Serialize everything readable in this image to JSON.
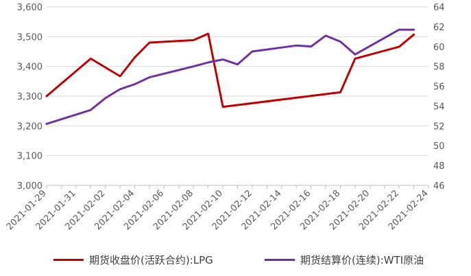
{
  "chart_data": {
    "type": "line",
    "x_dates": [
      "2021-01-29",
      "2021-01-30",
      "2021-01-31",
      "2021-02-01",
      "2021-02-02",
      "2021-02-03",
      "2021-02-04",
      "2021-02-05",
      "2021-02-06",
      "2021-02-07",
      "2021-02-08",
      "2021-02-09",
      "2021-02-10",
      "2021-02-11",
      "2021-02-12",
      "2021-02-13",
      "2021-02-14",
      "2021-02-15",
      "2021-02-16",
      "2021-02-17",
      "2021-02-18",
      "2021-02-19",
      "2021-02-20",
      "2021-02-21",
      "2021-02-22",
      "2021-02-23",
      "2021-02-24"
    ],
    "x_tick_labels": [
      "2021-01-29",
      "2021-01-31",
      "2021-02-02",
      "2021-02-04",
      "2021-02-06",
      "2021-02-08",
      "2021-02-10",
      "2021-02-12",
      "2021-02-14",
      "2021-02-16",
      "2021-02-18",
      "2021-02-20",
      "2021-02-22",
      "2021-02-24"
    ],
    "y_left": {
      "min": 3000,
      "max": 3600,
      "ticks": [
        "3,000",
        "3,100",
        "3,200",
        "3,300",
        "3,400",
        "3,500",
        "3,600"
      ]
    },
    "y_right": {
      "min": 46,
      "max": 64,
      "ticks": [
        "46",
        "48",
        "50",
        "52",
        "54",
        "56",
        "58",
        "60",
        "62",
        "64"
      ]
    },
    "series": [
      {
        "name": "期货收盘价(活跃合约):LPG",
        "axis": "left",
        "color": "#C00000",
        "points": [
          {
            "x": "2021-01-29",
            "y": 3300
          },
          {
            "x": "2021-02-01",
            "y": 3426
          },
          {
            "x": "2021-02-03",
            "y": 3367
          },
          {
            "x": "2021-02-04",
            "y": 3430
          },
          {
            "x": "2021-02-05",
            "y": 3480
          },
          {
            "x": "2021-02-08",
            "y": 3488
          },
          {
            "x": "2021-02-09",
            "y": 3510
          },
          {
            "x": "2021-02-10",
            "y": 3264
          },
          {
            "x": "2021-02-18",
            "y": 3313
          },
          {
            "x": "2021-02-19",
            "y": 3426
          },
          {
            "x": "2021-02-22",
            "y": 3466
          },
          {
            "x": "2021-02-23",
            "y": 3507
          }
        ]
      },
      {
        "name": "期货结算价(连续):WTI原油",
        "axis": "right",
        "color": "#7030A0",
        "points": [
          {
            "x": "2021-01-29",
            "y": 52.2
          },
          {
            "x": "2021-02-01",
            "y": 53.6
          },
          {
            "x": "2021-02-02",
            "y": 54.8
          },
          {
            "x": "2021-02-03",
            "y": 55.7
          },
          {
            "x": "2021-02-04",
            "y": 56.2
          },
          {
            "x": "2021-02-05",
            "y": 56.9
          },
          {
            "x": "2021-02-08",
            "y": 58.0
          },
          {
            "x": "2021-02-09",
            "y": 58.4
          },
          {
            "x": "2021-02-10",
            "y": 58.7
          },
          {
            "x": "2021-02-11",
            "y": 58.2
          },
          {
            "x": "2021-02-12",
            "y": 59.5
          },
          {
            "x": "2021-02-15",
            "y": 60.1
          },
          {
            "x": "2021-02-16",
            "y": 60.0
          },
          {
            "x": "2021-02-17",
            "y": 61.1
          },
          {
            "x": "2021-02-18",
            "y": 60.5
          },
          {
            "x": "2021-02-19",
            "y": 59.2
          },
          {
            "x": "2021-02-22",
            "y": 61.7
          },
          {
            "x": "2021-02-23",
            "y": 61.7
          }
        ]
      }
    ],
    "grid": "horizontal",
    "legend_position": "bottom"
  }
}
